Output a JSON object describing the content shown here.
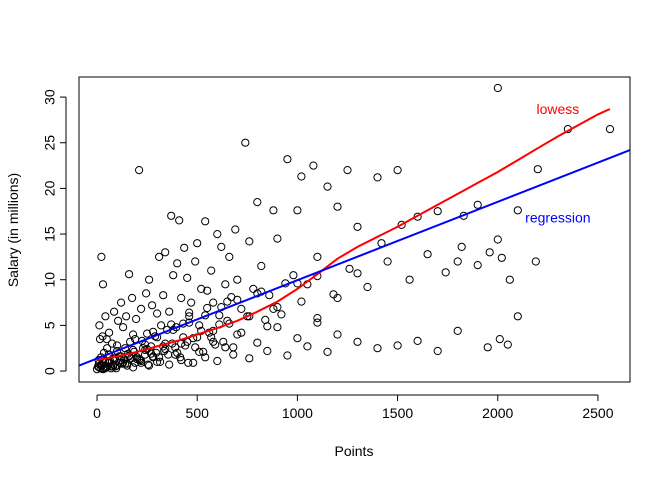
{
  "chart_data": {
    "type": "scatter",
    "title": "",
    "xlabel": "Points",
    "ylabel": "Salary (in millions)",
    "xlim": [
      -90,
      2660
    ],
    "ylim": [
      -1.2,
      32.2
    ],
    "xticks": [
      0,
      500,
      1000,
      1500,
      2000,
      2500
    ],
    "yticks": [
      0,
      5,
      10,
      15,
      20,
      25,
      30
    ],
    "grid": false,
    "points": {
      "x": [
        0,
        5,
        8,
        10,
        12,
        15,
        18,
        20,
        22,
        25,
        28,
        30,
        35,
        40,
        42,
        45,
        48,
        50,
        55,
        58,
        60,
        65,
        70,
        75,
        80,
        85,
        90,
        95,
        100,
        105,
        110,
        115,
        120,
        125,
        130,
        135,
        140,
        145,
        150,
        155,
        160,
        165,
        170,
        175,
        180,
        185,
        190,
        195,
        200,
        210,
        215,
        220,
        225,
        230,
        240,
        245,
        250,
        255,
        260,
        270,
        275,
        280,
        290,
        295,
        300,
        310,
        315,
        320,
        330,
        335,
        340,
        350,
        355,
        360,
        370,
        375,
        380,
        390,
        395,
        400,
        410,
        415,
        420,
        430,
        435,
        440,
        450,
        455,
        460,
        470,
        480,
        490,
        500,
        510,
        520,
        530,
        540,
        550,
        560,
        570,
        580,
        590,
        600,
        610,
        620,
        630,
        640,
        650,
        660,
        670,
        680,
        690,
        700,
        720,
        740,
        760,
        780,
        800,
        820,
        840,
        860,
        880,
        900,
        920,
        950,
        980,
        1000,
        1020,
        1050,
        1080,
        1100,
        1150,
        1200,
        1250,
        1300,
        1400,
        1500,
        1600,
        1700,
        1800,
        1900,
        2000,
        2100,
        2200,
        2350,
        2560,
        10,
        20,
        30,
        40,
        50,
        60,
        70,
        80,
        100,
        120,
        140,
        160,
        180,
        200,
        220,
        240,
        260,
        280,
        300,
        330,
        360,
        390,
        420,
        450,
        480,
        510,
        540,
        570,
        600,
        640,
        680,
        720,
        760,
        800,
        850,
        900,
        950,
        1000,
        1050,
        1100,
        1150,
        1200,
        1300,
        1400,
        1500,
        1600,
        1700,
        1800,
        1950,
        2050,
        20,
        40,
        60,
        80,
        100,
        130,
        160,
        190,
        220,
        250,
        280,
        310,
        340,
        370,
        400,
        430,
        460,
        490,
        520,
        550,
        580,
        610,
        650,
        700,
        750,
        800,
        850,
        900,
        1000,
        1100,
        1200,
        1300,
        1420,
        1520,
        1830,
        1960,
        2010,
        2060,
        2190,
        30,
        60,
        90,
        120,
        150,
        180,
        210,
        240,
        270,
        300,
        340,
        380,
        420,
        460,
        500,
        540,
        580,
        620,
        660,
        700,
        760,
        820,
        880,
        940,
        1020,
        1100,
        1180,
        1260,
        1350,
        1450,
        1560,
        1650,
        1740,
        1820,
        1900,
        2000,
        2020,
        2100
      ],
      "y": [
        0.2,
        0.5,
        1.2,
        0.8,
        5,
        3.5,
        0.3,
        1.5,
        12.5,
        0.6,
        3.8,
        9.5,
        2,
        1,
        6,
        0.4,
        3.5,
        2.5,
        0.9,
        1.8,
        4.2,
        1.1,
        0.5,
        3,
        0.7,
        6.5,
        1.4,
        0.3,
        2.2,
        5.5,
        1.6,
        0.9,
        7.5,
        0.8,
        4.8,
        1.3,
        2.5,
        6,
        0.6,
        1.9,
        10.6,
        3.2,
        1.4,
        8,
        4,
        2.1,
        0.9,
        5.7,
        1.5,
        22,
        1.2,
        6.8,
        3.3,
        2.5,
        1.8,
        8.5,
        4.1,
        0.7,
        10,
        2.7,
        7.2,
        1.6,
        3.8,
        2,
        6.3,
        12.5,
        1,
        5,
        8.3,
        2.2,
        13,
        4.5,
        1.8,
        6.5,
        17,
        3,
        10.5,
        2.6,
        4.8,
        11.8,
        16.5,
        1.5,
        8,
        5.2,
        13.5,
        2.8,
        10.2,
        0.9,
        6.4,
        7.5,
        3.6,
        12,
        14,
        5,
        9,
        2.1,
        16.4,
        8.8,
        4.2,
        11,
        7.5,
        2.9,
        15,
        6.1,
        13.6,
        3.2,
        9.5,
        5.5,
        12.5,
        8.1,
        2.6,
        15.5,
        10,
        6.8,
        25,
        14.2,
        9,
        18.5,
        11.5,
        5.6,
        8.3,
        17.6,
        14.5,
        6.2,
        23.2,
        10.5,
        17.6,
        21.3,
        9.5,
        22.5,
        12.5,
        20.2,
        18,
        22,
        15.8,
        21.2,
        22,
        16.9,
        17.5,
        12,
        18.2,
        31,
        6,
        22.1,
        26.5,
        26.5,
        0.4,
        0.7,
        0.2,
        1.1,
        0.5,
        0.9,
        0.3,
        1.4,
        0.6,
        1.2,
        0.8,
        1.7,
        0.4,
        1.3,
        0.9,
        2.3,
        0.6,
        1.5,
        1.0,
        2.7,
        0.7,
        1.8,
        1.2,
        3.2,
        0.9,
        2.1,
        1.5,
        3.7,
        1.1,
        2.6,
        1.8,
        4.2,
        1.4,
        3.1,
        2.2,
        4.8,
        1.7,
        3.6,
        2.7,
        5.3,
        2.1,
        4.0,
        3.2,
        2.5,
        2.8,
        3.3,
        2.2,
        4.4,
        2.6,
        2.9,
        0.6,
        0.3,
        1.8,
        0.5,
        2.8,
        0.9,
        1.6,
        3.5,
        1.1,
        2.4,
        4.3,
        1.5,
        3.0,
        5.1,
        2.0,
        3.7,
        6.0,
        2.6,
        4.4,
        6.9,
        3.2,
        5.1,
        7.6,
        4.0,
        6.0,
        8.5,
        4.9,
        7.0,
        9.6,
        5.8,
        8.0,
        10.7,
        14,
        16,
        17,
        13,
        3.5,
        10,
        12,
        0.3,
        1.0,
        0.5,
        1.6,
        0.8,
        2.3,
        1.3,
        2.9,
        1.9,
        3.7,
        2.4,
        4.5,
        3.0,
        5.3,
        3.7,
        6.1,
        4.4,
        7.0,
        5.2,
        7.8,
        6.0,
        8.7,
        6.8,
        9.6,
        7.6,
        10.4,
        8.4,
        11.2,
        9.2,
        12.0,
        10.0,
        12.8,
        10.8,
        13.6,
        11.6,
        14.4,
        12.4,
        17.6
      ]
    },
    "series": [
      {
        "name": "lowess",
        "color": "#ff0000",
        "type": "line",
        "x": [
          0,
          100,
          200,
          300,
          400,
          500,
          600,
          700,
          800,
          900,
          1000,
          1100,
          1200,
          1300,
          1400,
          1500,
          1600,
          1700,
          1800,
          1900,
          2000,
          2100,
          2200,
          2300,
          2400,
          2500,
          2560
        ],
        "y": [
          1.2,
          1.6,
          2.1,
          2.7,
          3.3,
          4.0,
          4.7,
          5.5,
          6.5,
          7.6,
          9.0,
          10.6,
          12.3,
          13.6,
          14.7,
          15.8,
          17.0,
          18.2,
          19.4,
          20.6,
          21.8,
          23.1,
          24.4,
          25.7,
          26.9,
          28.1,
          28.7
        ]
      },
      {
        "name": "regression",
        "color": "#0000ff",
        "type": "line",
        "x": [
          -90,
          2660
        ],
        "y": [
          0.6,
          24.2
        ]
      }
    ],
    "annotations": [
      {
        "text": "lowess",
        "x": 2300,
        "y": 28.7,
        "color": "#ff0000"
      },
      {
        "text": "regression",
        "x": 2300,
        "y": 16.8,
        "color": "#0000ff"
      }
    ]
  }
}
